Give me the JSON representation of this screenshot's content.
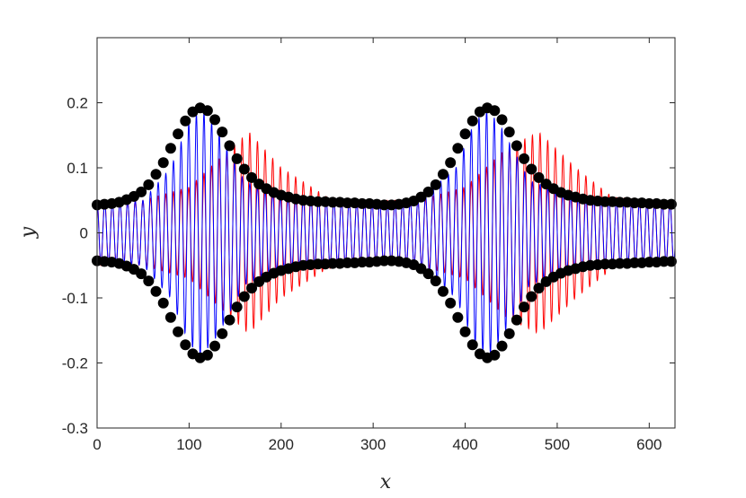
{
  "chart_data": {
    "type": "line",
    "xlabel": "x",
    "ylabel": "y",
    "xlim": [
      0,
      628
    ],
    "ylim": [
      -0.3,
      0.3
    ],
    "xticks": [
      0,
      100,
      200,
      300,
      400,
      500,
      600
    ],
    "yticks": [
      -0.3,
      -0.2,
      -0.1,
      0,
      0.1,
      0.2
    ],
    "xtick_labels": [
      "0",
      "100",
      "200",
      "300",
      "400",
      "500",
      "600"
    ],
    "ytick_labels": [
      "-0.3",
      "-0.2",
      "-0.1",
      "0",
      "0.1",
      "0.2"
    ],
    "grid": false,
    "legend": "none",
    "oscillation_period": 8.3,
    "series": [
      {
        "style": "line",
        "color": "#ff0000",
        "envelope_x": [
          0,
          50,
          100,
          130,
          165,
          200,
          250,
          300,
          350,
          400,
          430,
          445,
          480,
          520,
          560,
          600,
          628
        ],
        "envelope_amplitude": [
          0.05,
          0.05,
          0.07,
          0.11,
          0.155,
          0.1,
          0.055,
          0.05,
          0.05,
          0.07,
          0.11,
          0.13,
          0.155,
          0.1,
          0.055,
          0.05,
          0.05
        ]
      },
      {
        "style": "line",
        "color": "#0000ff",
        "envelope_x": [
          0,
          50,
          80,
          100,
          113,
          130,
          160,
          200,
          250,
          300,
          350,
          390,
          410,
          425,
          440,
          470,
          520,
          560,
          600,
          628
        ],
        "envelope_amplitude": [
          0.045,
          0.05,
          0.1,
          0.17,
          0.19,
          0.16,
          0.08,
          0.055,
          0.05,
          0.045,
          0.05,
          0.1,
          0.17,
          0.19,
          0.16,
          0.08,
          0.055,
          0.05,
          0.045,
          0.045
        ]
      },
      {
        "style": "markers",
        "color": "#000000",
        "x": [
          0,
          8,
          16,
          24,
          32,
          40,
          48,
          56,
          64,
          72,
          80,
          88,
          96,
          104,
          112,
          120,
          128,
          136,
          144,
          152,
          160,
          168,
          176,
          184,
          192,
          200,
          208,
          216,
          224,
          232,
          240,
          248,
          256,
          264,
          272,
          280,
          288,
          296,
          304,
          312,
          320,
          328,
          336,
          344,
          352,
          360,
          368,
          376,
          384,
          392,
          400,
          408,
          416,
          424,
          432,
          440,
          448,
          456,
          464,
          472,
          480,
          488,
          496,
          504,
          512,
          520,
          528,
          536,
          544,
          552,
          560,
          568,
          576,
          584,
          592,
          600,
          608,
          616,
          624
        ],
        "upper": [
          0.043,
          0.044,
          0.045,
          0.047,
          0.051,
          0.056,
          0.063,
          0.074,
          0.09,
          0.108,
          0.13,
          0.152,
          0.172,
          0.186,
          0.192,
          0.188,
          0.174,
          0.155,
          0.134,
          0.114,
          0.098,
          0.085,
          0.075,
          0.068,
          0.062,
          0.058,
          0.055,
          0.052,
          0.05,
          0.049,
          0.048,
          0.048,
          0.047,
          0.047,
          0.046,
          0.046,
          0.045,
          0.045,
          0.044,
          0.043,
          0.043,
          0.044,
          0.046,
          0.049,
          0.055,
          0.063,
          0.074,
          0.09,
          0.108,
          0.13,
          0.152,
          0.172,
          0.186,
          0.192,
          0.188,
          0.174,
          0.155,
          0.134,
          0.114,
          0.098,
          0.085,
          0.075,
          0.068,
          0.062,
          0.058,
          0.055,
          0.052,
          0.05,
          0.049,
          0.048,
          0.048,
          0.047,
          0.047,
          0.046,
          0.046,
          0.045,
          0.045,
          0.044,
          0.044
        ]
      }
    ]
  }
}
